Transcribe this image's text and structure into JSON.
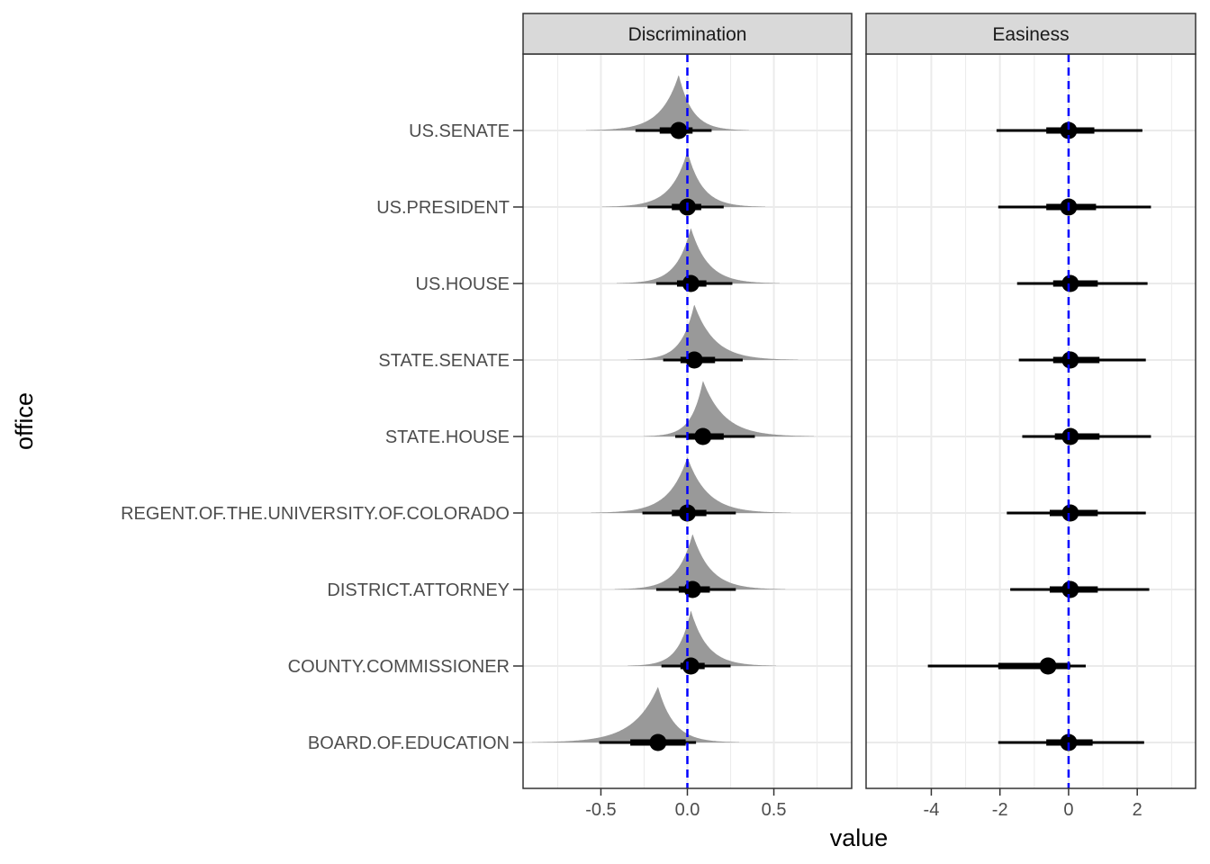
{
  "chart_data": {
    "type": "halfeye",
    "xlabel": "value",
    "ylabel": "office",
    "categories": [
      "US.SENATE",
      "US.PRESIDENT",
      "US.HOUSE",
      "STATE.SENATE",
      "STATE.HOUSE",
      "REGENT.OF.THE.UNIVERSITY.OF.COLORADO",
      "DISTRICT.ATTORNEY",
      "COUNTY.COMMISSIONER",
      "BOARD.OF.EDUCATION"
    ],
    "reference_line": 0,
    "colors": {
      "density": "#999999",
      "interval": "#000000",
      "reference_line": "#0000ff",
      "strip_fill": "#d9d9d9",
      "grid": "#ebebeb"
    },
    "facets": [
      {
        "title": "Discrimination",
        "xlim": [
          -0.95,
          0.95
        ],
        "xticks": [
          -0.5,
          0.0,
          0.5
        ],
        "xtick_labels": [
          "-0.5",
          "0.0",
          "0.5"
        ],
        "show_density": true,
        "series": [
          {
            "office": "US.SENATE",
            "median": -0.05,
            "inner": [
              -0.16,
              0.03
            ],
            "outer": [
              -0.3,
              0.14
            ]
          },
          {
            "office": "US.PRESIDENT",
            "median": 0.0,
            "inner": [
              -0.09,
              0.08
            ],
            "outer": [
              -0.23,
              0.21
            ]
          },
          {
            "office": "US.HOUSE",
            "median": 0.02,
            "inner": [
              -0.06,
              0.11
            ],
            "outer": [
              -0.18,
              0.26
            ]
          },
          {
            "office": "STATE.SENATE",
            "median": 0.04,
            "inner": [
              -0.04,
              0.16
            ],
            "outer": [
              -0.14,
              0.32
            ]
          },
          {
            "office": "STATE.HOUSE",
            "median": 0.09,
            "inner": [
              0.0,
              0.21
            ],
            "outer": [
              -0.07,
              0.39
            ]
          },
          {
            "office": "REGENT.OF.THE.UNIVERSITY.OF.COLORADO",
            "median": 0.0,
            "inner": [
              -0.09,
              0.11
            ],
            "outer": [
              -0.26,
              0.28
            ]
          },
          {
            "office": "DISTRICT.ATTORNEY",
            "median": 0.03,
            "inner": [
              -0.05,
              0.13
            ],
            "outer": [
              -0.18,
              0.28
            ]
          },
          {
            "office": "COUNTY.COMMISSIONER",
            "median": 0.02,
            "inner": [
              -0.04,
              0.1
            ],
            "outer": [
              -0.15,
              0.25
            ]
          },
          {
            "office": "BOARD.OF.EDUCATION",
            "median": -0.17,
            "inner": [
              -0.33,
              -0.01
            ],
            "outer": [
              -0.51,
              0.05
            ]
          }
        ]
      },
      {
        "title": "Easiness",
        "xlim": [
          -5.9,
          3.7
        ],
        "xticks": [
          -4,
          -2,
          0,
          2
        ],
        "xtick_labels": [
          "-4",
          "-2",
          "0",
          "2"
        ],
        "show_density": false,
        "series": [
          {
            "office": "US.SENATE",
            "median": 0.0,
            "inner": [
              -0.65,
              0.75
            ],
            "outer": [
              -2.1,
              2.15
            ]
          },
          {
            "office": "US.PRESIDENT",
            "median": 0.0,
            "inner": [
              -0.65,
              0.8
            ],
            "outer": [
              -2.05,
              2.4
            ]
          },
          {
            "office": "US.HOUSE",
            "median": 0.05,
            "inner": [
              -0.45,
              0.85
            ],
            "outer": [
              -1.5,
              2.3
            ]
          },
          {
            "office": "STATE.SENATE",
            "median": 0.05,
            "inner": [
              -0.45,
              0.9
            ],
            "outer": [
              -1.45,
              2.25
            ]
          },
          {
            "office": "STATE.HOUSE",
            "median": 0.05,
            "inner": [
              -0.4,
              0.9
            ],
            "outer": [
              -1.35,
              2.4
            ]
          },
          {
            "office": "REGENT.OF.THE.UNIVERSITY.OF.COLORADO",
            "median": 0.05,
            "inner": [
              -0.55,
              0.85
            ],
            "outer": [
              -1.8,
              2.25
            ]
          },
          {
            "office": "DISTRICT.ATTORNEY",
            "median": 0.05,
            "inner": [
              -0.55,
              0.85
            ],
            "outer": [
              -1.7,
              2.35
            ]
          },
          {
            "office": "COUNTY.COMMISSIONER",
            "median": -0.6,
            "inner": [
              -2.05,
              0.05
            ],
            "outer": [
              -4.1,
              0.5
            ]
          },
          {
            "office": "BOARD.OF.EDUCATION",
            "median": 0.0,
            "inner": [
              -0.65,
              0.7
            ],
            "outer": [
              -2.05,
              2.2
            ]
          }
        ]
      }
    ]
  }
}
